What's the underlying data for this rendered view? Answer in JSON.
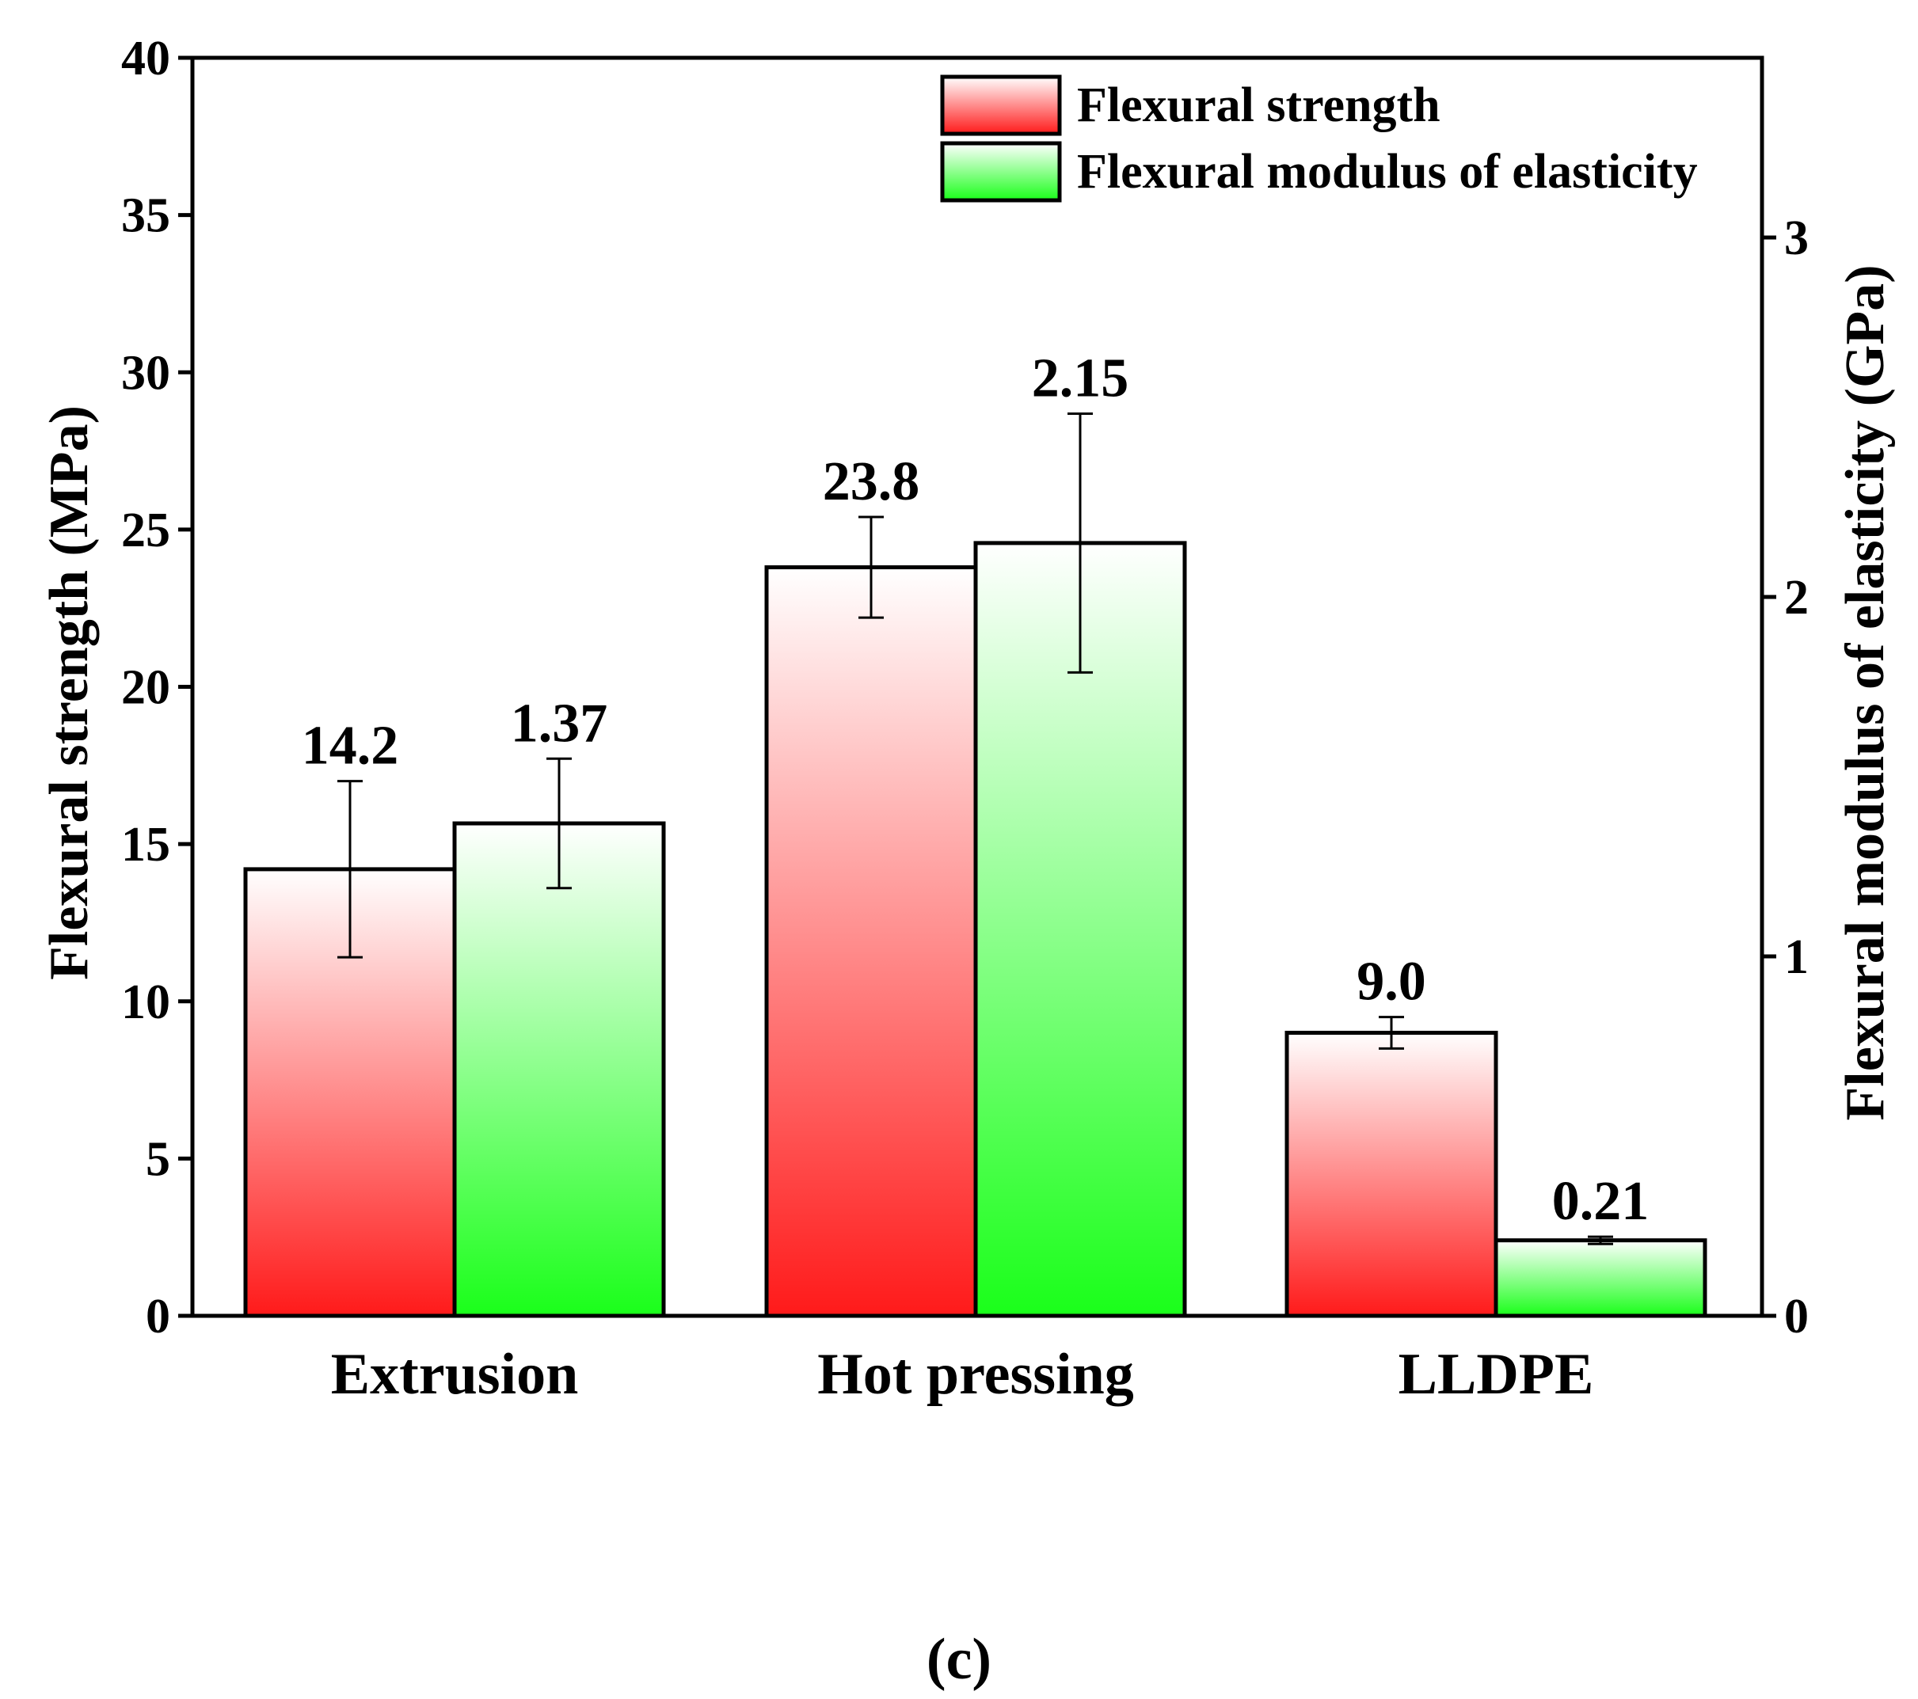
{
  "chart_data": {
    "type": "bar",
    "panel_label": "(c)",
    "categories": [
      "Extrusion",
      "Hot pressing",
      "LLDPE"
    ],
    "left_axis": {
      "label": "Flexural strength (MPa)",
      "ylim": [
        0,
        40
      ],
      "ticks": [
        0,
        5,
        10,
        15,
        20,
        25,
        30,
        35,
        40
      ]
    },
    "right_axis": {
      "label": "Flexural modulus of elasticity (GPa)",
      "ylim": [
        0,
        3.5
      ],
      "ticks": [
        0,
        1,
        2,
        3
      ]
    },
    "series": [
      {
        "name": "Flexural strength",
        "axis": "left",
        "color": "#ff1a1a",
        "values": [
          14.2,
          23.8,
          9.0
        ],
        "labels": [
          "14.2",
          "23.8",
          "9.0"
        ],
        "err_low": [
          11.4,
          22.2,
          8.5
        ],
        "err_high": [
          17.0,
          25.4,
          9.5
        ]
      },
      {
        "name": "Flexural modulus of elasticity",
        "axis": "right",
        "color": "#1aff1a",
        "values": [
          1.37,
          2.15,
          0.21
        ],
        "labels": [
          "1.37",
          "2.15",
          "0.21"
        ],
        "err_low": [
          1.19,
          1.79,
          0.2
        ],
        "err_high": [
          1.55,
          2.51,
          0.22
        ]
      }
    ],
    "legend_position": "top-right",
    "grid": false
  }
}
